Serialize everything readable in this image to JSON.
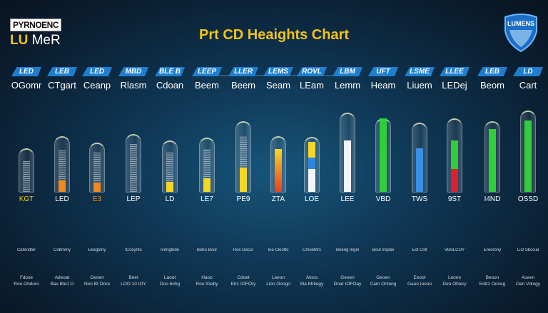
{
  "logo": {
    "box_text": "PYRNOENC",
    "sub_yellow": "LU",
    "sub_white": " MeR"
  },
  "badge": {
    "text": "LUMENS"
  },
  "chart_data": {
    "type": "bar",
    "title": "Prt CD Heaights Chart",
    "categories": [
      "LED",
      "LEB",
      "LED",
      "MBD",
      "BLE B",
      "LEEP",
      "LLER",
      "LEMS",
      "ROVL",
      "LBM",
      "UFT",
      "LSME",
      "LLEE",
      "LEB",
      "LD"
    ],
    "names": [
      "OGomr",
      "CTgart",
      "Ceanp",
      "Rlasm",
      "Cdoan",
      "Beem",
      "Beem",
      "Seam",
      "LEam",
      "Lemm",
      "Heam",
      "Liuem",
      "LEDej",
      "Beom",
      "Cart"
    ],
    "tube_level_percent": [
      52,
      66,
      58,
      68,
      61,
      64,
      83,
      66,
      65,
      93,
      87,
      82,
      87,
      83,
      96
    ],
    "fill_segments": [
      [
        {
          "level": 36,
          "color": "grid"
        }
      ],
      [
        {
          "level": 48,
          "color": "grid"
        },
        {
          "level": 13,
          "color": "#f08a1c"
        }
      ],
      [
        {
          "level": 46,
          "color": "grid"
        },
        {
          "level": 11,
          "color": "#f08a1c"
        }
      ],
      [
        {
          "level": 56,
          "color": "grid"
        }
      ],
      [
        {
          "level": 46,
          "color": "grid"
        },
        {
          "level": 12,
          "color": "#f5d827"
        }
      ],
      [
        {
          "level": 50,
          "color": "grid"
        },
        {
          "level": 16,
          "color": "#f5d827"
        }
      ],
      [
        {
          "level": 65,
          "color": "grid"
        },
        {
          "level": 28,
          "color": "#f5d827"
        }
      ],
      [
        {
          "level": 50,
          "color": "gradient-yellow-red"
        }
      ],
      [
        {
          "level": 27,
          "color": "#f3f6fa"
        },
        {
          "level": 13,
          "color": "#2f86e0"
        },
        {
          "level": 18,
          "color": "#f5d827"
        }
      ],
      [
        {
          "level": 60,
          "color": "#f3f6fa"
        }
      ],
      [
        {
          "level": 86,
          "color": "#2fcf3a"
        }
      ],
      [
        {
          "level": 51,
          "color": "#3a8fe8"
        }
      ],
      [
        {
          "level": 27,
          "color": "#e21e2a"
        },
        {
          "level": 33,
          "color": "#2fcf3a"
        }
      ],
      [
        {
          "level": 73,
          "color": "#2fcf3a"
        }
      ],
      [
        {
          "level": 83,
          "color": "#2fcf3a"
        }
      ]
    ],
    "bottom_labels": [
      "KGT",
      "LED",
      "E3",
      "LEP",
      "LD",
      "LE7",
      "PE9",
      "ZTA",
      "LOE",
      "LEE",
      "VBD",
      "TWS",
      "9ST",
      "I4ND",
      "OSSD"
    ],
    "bottom_label_colors": [
      "#f3c316",
      "#ffffff",
      "#f08a1c",
      "#ffffff",
      "#ffffff",
      "#ffffff",
      "#ffffff",
      "#ffffff",
      "#ffffff",
      "#ffffff",
      "#ffffff",
      "#ffffff",
      "#ffffff",
      "#ffffff",
      "#ffffff"
    ],
    "row3": [
      "Catendter",
      "Cobmmy",
      "Ekeglony",
      "ICceynto",
      "Ivringlnde",
      "Boho Boor",
      "Ros Geccr",
      "Iuo Cleotto",
      "Cmoebtrs",
      "Beeng Ingel",
      "Bout Irepbe",
      "Eot Clrit",
      "VBSLCOY",
      "Ereorony",
      "LiO Sbccial"
    ],
    "row4_line1": [
      "Fdose",
      "Adeoat",
      "Geoen",
      "Beet",
      "Laoot",
      "Haoo",
      "Cdoet",
      "Leeon",
      "Aloos",
      "Geoen",
      "Geoen",
      "Eeoot",
      "Leono",
      "Beoon",
      "Aceen"
    ],
    "row4_line2": [
      "Roo Ghdoro",
      "Bax BtdJ O",
      "Nori Bt Oore",
      "LOO 10 IOY",
      "Doo 6ohg",
      "Roo IGeby",
      "Eh1 IOFOry",
      "Lion Ooogo",
      "Ma Kbtiegy",
      "Doar IOFOay",
      "Cam Ortiong",
      "Gauo Ioono",
      "Den Ohtery",
      "Edd1 Ooneg",
      "Oen Vdiogy"
    ]
  }
}
